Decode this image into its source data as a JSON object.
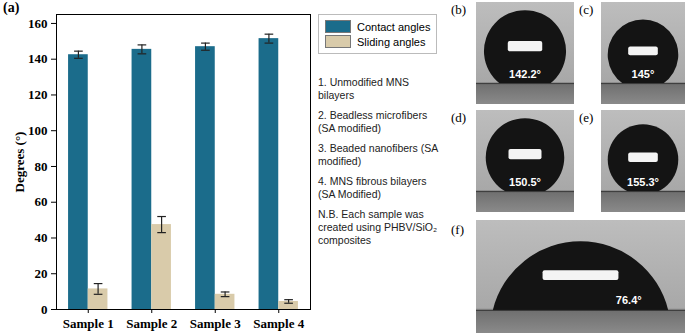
{
  "chart_data": {
    "type": "bar",
    "title": "(a)",
    "y_label": "Degrees (°)",
    "categories": [
      "Sample 1",
      "Sample 2",
      "Sample 3",
      "Sample 4"
    ],
    "series": [
      {
        "name": "Contact angles",
        "color": "#1b6c8b",
        "values": [
          142.5,
          145.5,
          147,
          151.5
        ],
        "errors": [
          2,
          2.5,
          2,
          2.5
        ]
      },
      {
        "name": "Sliding angles",
        "color": "#d9cbaa",
        "values": [
          11.5,
          47.5,
          8.5,
          4.5
        ],
        "errors": [
          3,
          4.5,
          1.3,
          1
        ]
      }
    ],
    "ylim": [
      0,
      165
    ],
    "yticks": [
      0,
      20,
      40,
      60,
      80,
      100,
      120,
      140,
      160
    ],
    "grid": false,
    "legend": "top-right",
    "annotations": [
      "1. Unmodified MNS bilayers",
      "2. Beadless microfibers (SA modified)",
      "3. Beaded nanofibers (SA modified)",
      "4. MNS fibrous bilayers (SA Modified)",
      "N.B. Each sample was created using PHBV/SiO₂ composites"
    ]
  },
  "photos": [
    {
      "panel": "(b)",
      "angle": 142.2,
      "label": "142.2°"
    },
    {
      "panel": "(c)",
      "angle": 145,
      "label": "145°"
    },
    {
      "panel": "(d)",
      "angle": 150.5,
      "label": "150.5°"
    },
    {
      "panel": "(e)",
      "angle": 155.3,
      "label": "155.3°"
    },
    {
      "panel": "(f)",
      "angle": 76.4,
      "label": "76.4°"
    }
  ]
}
